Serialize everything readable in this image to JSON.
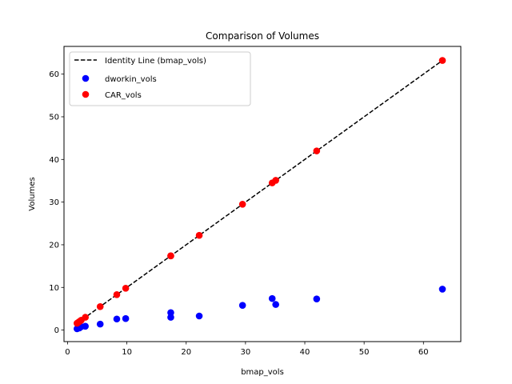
{
  "chart_data": {
    "type": "scatter",
    "title": "Comparison of Volumes",
    "xlabel": "bmap_vols",
    "ylabel": "Volumes",
    "xlim": [
      -0.6,
      66.3
    ],
    "ylim": [
      -2.7,
      66.5
    ],
    "xticks": [
      0,
      10,
      20,
      30,
      40,
      50,
      60
    ],
    "yticks": [
      0,
      10,
      20,
      30,
      40,
      50,
      60
    ],
    "grid": false,
    "legend_position": "top-left",
    "series": [
      {
        "name": "Identity Line (bmap_vols)",
        "kind": "line",
        "style": "dashed",
        "color": "#000000",
        "x": [
          1.6,
          63.2
        ],
        "y": [
          1.6,
          63.2
        ]
      },
      {
        "name": "dworkin_vols",
        "kind": "scatter",
        "color": "#0000ff",
        "x": [
          1.6,
          1.8,
          2.0,
          2.3,
          3.0,
          5.5,
          8.3,
          9.8,
          17.4,
          17.4,
          22.2,
          29.5,
          34.5,
          35.1,
          42.0,
          63.2
        ],
        "y": [
          0.3,
          0.6,
          0.5,
          0.8,
          0.9,
          1.4,
          2.6,
          2.7,
          3.0,
          4.1,
          3.3,
          5.8,
          7.4,
          6.0,
          7.3,
          9.6
        ]
      },
      {
        "name": "CAR_vols",
        "kind": "scatter",
        "color": "#ff0000",
        "x": [
          1.6,
          1.8,
          2.0,
          2.3,
          3.0,
          5.5,
          8.3,
          9.8,
          17.4,
          17.4,
          22.2,
          29.5,
          34.5,
          35.1,
          42.0,
          63.2
        ],
        "y": [
          1.6,
          1.8,
          2.0,
          2.3,
          3.0,
          5.5,
          8.3,
          9.8,
          17.4,
          17.4,
          22.2,
          29.5,
          34.5,
          35.1,
          42.0,
          63.2
        ]
      }
    ]
  }
}
